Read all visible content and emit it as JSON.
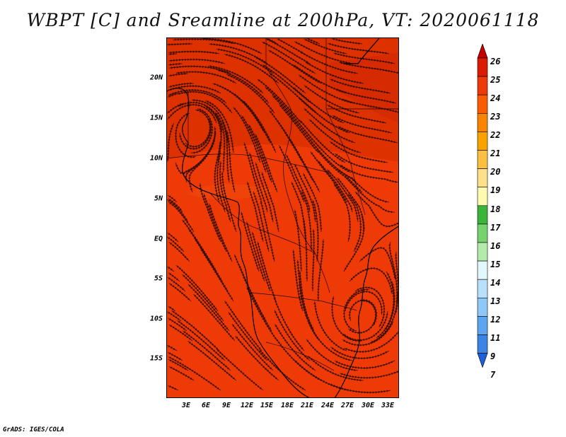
{
  "title": "WBPT [C] and Sreamline at 200hPa, VT: 2020061118",
  "credit": "GrADS: IGES/COLA",
  "map": {
    "lat_labels": [
      "20N",
      "15N",
      "10N",
      "5N",
      "EQ",
      "5S",
      "10S",
      "15S"
    ],
    "lon_labels": [
      "3E",
      "6E",
      "9E",
      "12E",
      "15E",
      "18E",
      "21E",
      "24E",
      "27E",
      "30E",
      "33E"
    ],
    "field_colors": {
      "base": "#ee3a06",
      "warm": "#d52a00",
      "north_band": "#d93000",
      "cool_patch": "#f24a10"
    }
  },
  "colorbar": {
    "levels": [
      "26",
      "25",
      "24",
      "23",
      "22",
      "21",
      "20",
      "19",
      "18",
      "17",
      "16",
      "15",
      "14",
      "13",
      "12",
      "11",
      "9",
      "7"
    ],
    "colors": [
      "#c40000",
      "#dc1c00",
      "#ee3a06",
      "#fa5c00",
      "#fb8300",
      "#fba200",
      "#fbc040",
      "#fde08a",
      "#fefbb0",
      "#3ab53a",
      "#76d36b",
      "#b3ecaa",
      "#e2f8fa",
      "#b8e0fb",
      "#8ec8f7",
      "#5ca5ef",
      "#3a84e6",
      "#1c5fd6"
    ]
  }
}
